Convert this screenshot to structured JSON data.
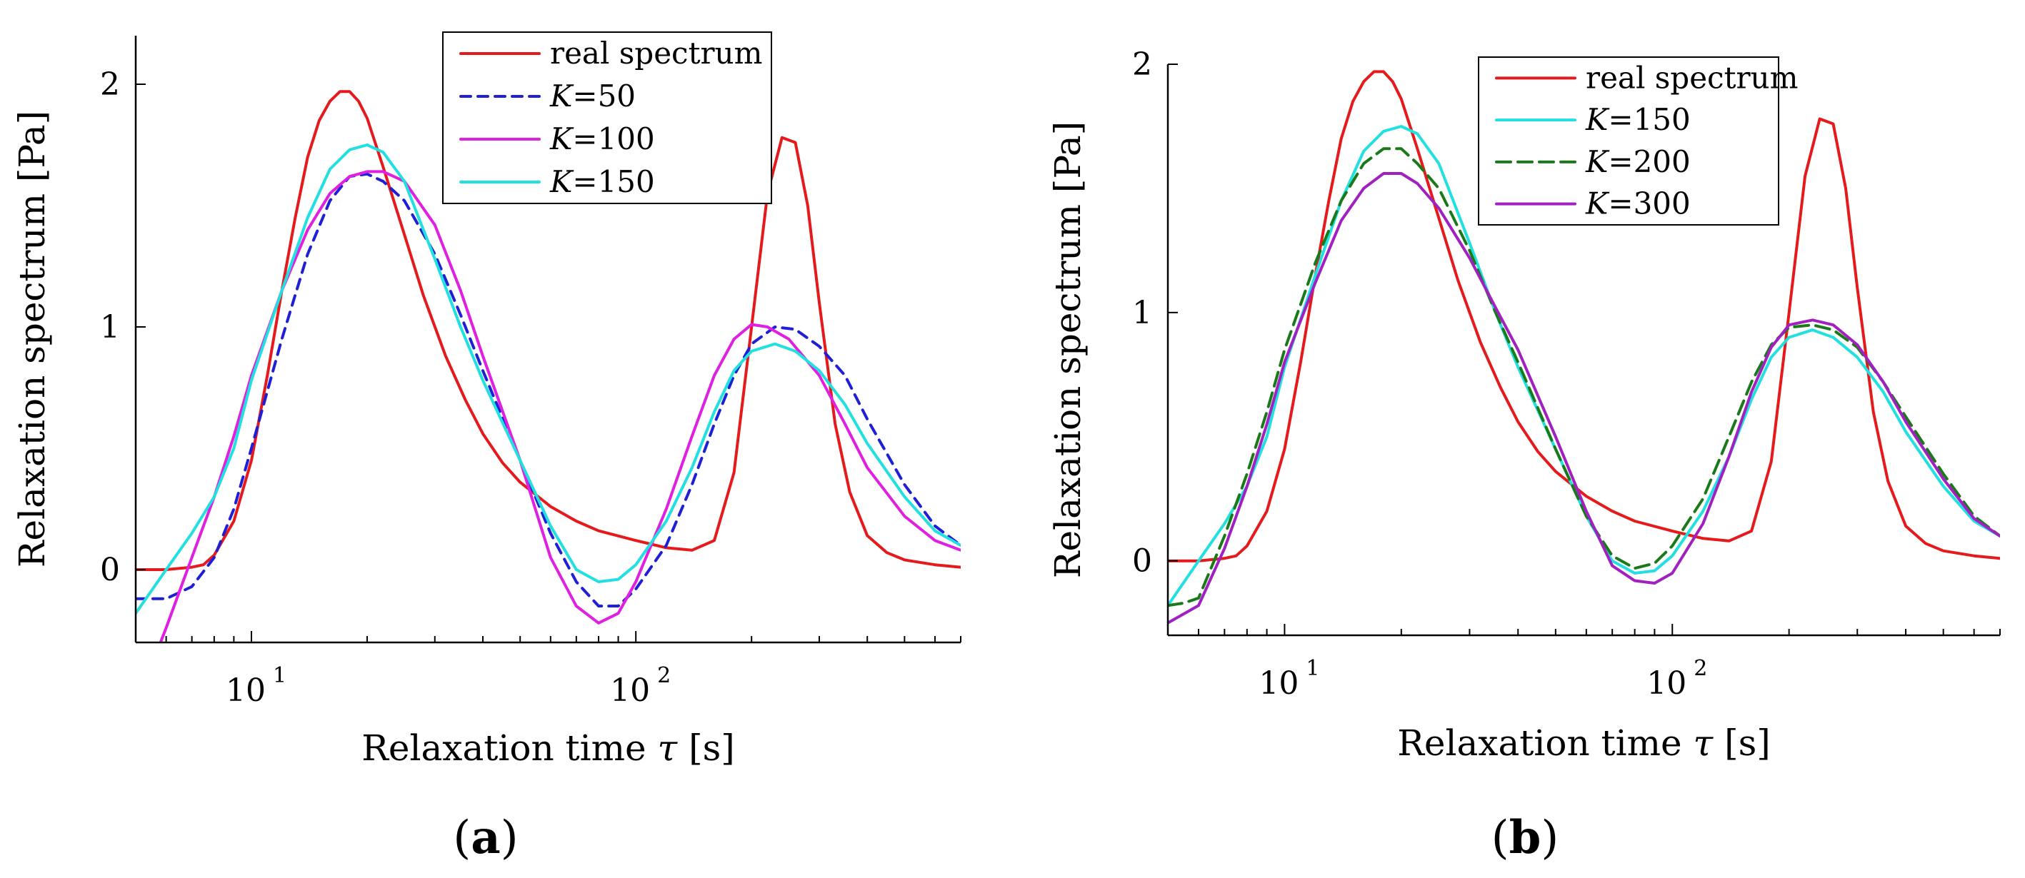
{
  "chart_data": [
    {
      "type": "line",
      "panel_label": "a",
      "xlabel": "Relaxation time",
      "xlabel_symbol": "τ",
      "xlabel_unit": "[s]",
      "ylabel": "Relaxation spectrum  [Pa]",
      "xscale": "log",
      "xlim": [
        5,
        700
      ],
      "ylim": [
        -0.3,
        2.2
      ],
      "xticks": [
        {
          "base": "10",
          "exp": "1",
          "value": 10
        },
        {
          "base": "10",
          "exp": "2",
          "value": 100
        }
      ],
      "yticks": [
        {
          "label": "0",
          "value": 0
        },
        {
          "label": "1",
          "value": 1
        },
        {
          "label": "2",
          "value": 2
        }
      ],
      "legend_position": "top-center",
      "series": [
        {
          "name": "real spectrum",
          "label_prefix": "",
          "label_value": "real spectrum",
          "color": "#e41a1c",
          "dash": "",
          "x": [
            5,
            6,
            7,
            7.5,
            8,
            9,
            10,
            11,
            12,
            13,
            14,
            15,
            16,
            17,
            18,
            19,
            20,
            22,
            25,
            28,
            32,
            36,
            40,
            45,
            50,
            60,
            70,
            80,
            100,
            120,
            140,
            160,
            180,
            200,
            220,
            240,
            260,
            280,
            300,
            330,
            360,
            400,
            450,
            500,
            600,
            700
          ],
          "y": [
            0,
            0,
            0.01,
            0.02,
            0.06,
            0.2,
            0.45,
            0.8,
            1.15,
            1.45,
            1.7,
            1.85,
            1.93,
            1.97,
            1.97,
            1.93,
            1.86,
            1.66,
            1.38,
            1.13,
            0.88,
            0.7,
            0.56,
            0.44,
            0.36,
            0.26,
            0.2,
            0.16,
            0.12,
            0.09,
            0.08,
            0.12,
            0.4,
            1.0,
            1.55,
            1.78,
            1.76,
            1.5,
            1.1,
            0.6,
            0.32,
            0.14,
            0.07,
            0.04,
            0.02,
            0.01
          ]
        },
        {
          "name": "K=50",
          "label_prefix": "K",
          "label_value": "=50",
          "color": "#1f1fd6",
          "dash": "14 10",
          "x": [
            5,
            6,
            7,
            8,
            9,
            10,
            12,
            14,
            16,
            18,
            20,
            22,
            25,
            30,
            35,
            40,
            50,
            60,
            70,
            80,
            90,
            100,
            120,
            140,
            160,
            180,
            200,
            230,
            260,
            300,
            350,
            400,
            500,
            600,
            700
          ],
          "y": [
            -0.12,
            -0.12,
            -0.07,
            0.05,
            0.25,
            0.5,
            0.95,
            1.3,
            1.52,
            1.62,
            1.63,
            1.6,
            1.52,
            1.3,
            1.05,
            0.82,
            0.45,
            0.15,
            -0.05,
            -0.15,
            -0.15,
            -0.08,
            0.1,
            0.35,
            0.6,
            0.8,
            0.93,
            1.0,
            0.99,
            0.92,
            0.8,
            0.62,
            0.35,
            0.18,
            0.1
          ]
        },
        {
          "name": "K=100",
          "label_prefix": "K",
          "label_value": "=100",
          "color": "#e020e0",
          "dash": "",
          "x": [
            5.8,
            6,
            7,
            8,
            9,
            10,
            12,
            14,
            16,
            18,
            20,
            22,
            25,
            30,
            35,
            40,
            50,
            60,
            70,
            80,
            90,
            100,
            120,
            140,
            160,
            180,
            200,
            220,
            250,
            300,
            350,
            400,
            500,
            600,
            700
          ],
          "y": [
            -0.3,
            -0.24,
            0.05,
            0.3,
            0.55,
            0.8,
            1.15,
            1.4,
            1.55,
            1.62,
            1.64,
            1.64,
            1.6,
            1.42,
            1.15,
            0.88,
            0.45,
            0.05,
            -0.15,
            -0.22,
            -0.18,
            -0.05,
            0.25,
            0.55,
            0.8,
            0.95,
            1.01,
            1.0,
            0.95,
            0.8,
            0.6,
            0.42,
            0.22,
            0.12,
            0.08
          ]
        },
        {
          "name": "K=150",
          "label_prefix": "K",
          "label_value": "=150",
          "color": "#22e0e0",
          "dash": "",
          "x": [
            5,
            6,
            7,
            8,
            9,
            10,
            12,
            14,
            16,
            18,
            20,
            22,
            25,
            30,
            35,
            40,
            50,
            60,
            70,
            80,
            90,
            100,
            120,
            140,
            160,
            180,
            200,
            230,
            260,
            300,
            350,
            400,
            500,
            600,
            700
          ],
          "y": [
            -0.18,
            0.0,
            0.15,
            0.3,
            0.5,
            0.78,
            1.15,
            1.45,
            1.65,
            1.73,
            1.75,
            1.72,
            1.6,
            1.28,
            1.0,
            0.78,
            0.45,
            0.18,
            0.0,
            -0.05,
            -0.04,
            0.02,
            0.2,
            0.42,
            0.65,
            0.82,
            0.9,
            0.93,
            0.9,
            0.82,
            0.68,
            0.52,
            0.3,
            0.16,
            0.1
          ]
        }
      ]
    },
    {
      "type": "line",
      "panel_label": "b",
      "xlabel": "Relaxation time",
      "xlabel_symbol": "τ",
      "xlabel_unit": "[s]",
      "ylabel": "Relaxation spectrum  [Pa]",
      "xscale": "log",
      "xlim": [
        5,
        700
      ],
      "ylim": [
        -0.3,
        2.0
      ],
      "xticks": [
        {
          "base": "10",
          "exp": "1",
          "value": 10
        },
        {
          "base": "10",
          "exp": "2",
          "value": 100
        }
      ],
      "yticks": [
        {
          "label": "0",
          "value": 0
        },
        {
          "label": "1",
          "value": 1
        },
        {
          "label": "2",
          "value": 2
        }
      ],
      "legend_position": "top-center",
      "series": [
        {
          "name": "real spectrum",
          "label_prefix": "",
          "label_value": "real spectrum",
          "color": "#e41a1c",
          "dash": "",
          "x": [
            5,
            6,
            7,
            7.5,
            8,
            9,
            10,
            11,
            12,
            13,
            14,
            15,
            16,
            17,
            18,
            19,
            20,
            22,
            25,
            28,
            32,
            36,
            40,
            45,
            50,
            60,
            70,
            80,
            100,
            120,
            140,
            160,
            180,
            200,
            220,
            240,
            260,
            280,
            300,
            330,
            360,
            400,
            450,
            500,
            600,
            700
          ],
          "y": [
            0,
            0,
            0.01,
            0.02,
            0.06,
            0.2,
            0.45,
            0.8,
            1.15,
            1.45,
            1.7,
            1.85,
            1.93,
            1.97,
            1.97,
            1.93,
            1.86,
            1.66,
            1.38,
            1.13,
            0.88,
            0.7,
            0.56,
            0.44,
            0.36,
            0.26,
            0.2,
            0.16,
            0.12,
            0.09,
            0.08,
            0.12,
            0.4,
            1.0,
            1.55,
            1.78,
            1.76,
            1.5,
            1.1,
            0.6,
            0.32,
            0.14,
            0.07,
            0.04,
            0.02,
            0.01
          ]
        },
        {
          "name": "K=150",
          "label_prefix": "K",
          "label_value": "=150",
          "color": "#22e0e0",
          "dash": "",
          "x": [
            5,
            6,
            7,
            8,
            9,
            10,
            12,
            14,
            16,
            18,
            20,
            22,
            25,
            30,
            35,
            40,
            50,
            60,
            70,
            80,
            90,
            100,
            120,
            140,
            160,
            180,
            200,
            230,
            260,
            300,
            350,
            400,
            500,
            600,
            700
          ],
          "y": [
            -0.18,
            0.0,
            0.15,
            0.3,
            0.5,
            0.78,
            1.15,
            1.45,
            1.65,
            1.73,
            1.75,
            1.72,
            1.6,
            1.28,
            1.0,
            0.78,
            0.45,
            0.18,
            0.0,
            -0.05,
            -0.04,
            0.02,
            0.2,
            0.42,
            0.65,
            0.82,
            0.9,
            0.93,
            0.9,
            0.82,
            0.68,
            0.52,
            0.3,
            0.16,
            0.1
          ]
        },
        {
          "name": "K=200",
          "label_prefix": "K",
          "label_value": "=200",
          "color": "#1a7a1a",
          "dash": "20 10",
          "x": [
            5,
            5.5,
            6,
            7,
            8,
            9,
            10,
            12,
            14,
            16,
            18,
            20,
            22,
            25,
            30,
            35,
            40,
            50,
            60,
            70,
            80,
            90,
            100,
            120,
            140,
            160,
            180,
            200,
            230,
            260,
            300,
            350,
            400,
            500,
            600,
            700
          ],
          "y": [
            -0.18,
            -0.17,
            -0.15,
            0.1,
            0.35,
            0.6,
            0.85,
            1.2,
            1.45,
            1.6,
            1.66,
            1.66,
            1.6,
            1.5,
            1.25,
            1.0,
            0.8,
            0.45,
            0.18,
            0.02,
            -0.03,
            -0.01,
            0.06,
            0.25,
            0.5,
            0.72,
            0.87,
            0.94,
            0.95,
            0.93,
            0.86,
            0.72,
            0.58,
            0.35,
            0.18,
            0.1
          ]
        },
        {
          "name": "K=300",
          "label_prefix": "K",
          "label_value": "=300",
          "color": "#a020c0",
          "dash": "",
          "x": [
            5,
            6,
            7,
            8,
            9,
            10,
            12,
            14,
            16,
            18,
            20,
            22,
            25,
            30,
            35,
            40,
            50,
            60,
            70,
            80,
            90,
            100,
            120,
            140,
            160,
            180,
            200,
            230,
            260,
            300,
            350,
            400,
            500,
            600,
            700
          ],
          "y": [
            -0.25,
            -0.18,
            0.05,
            0.3,
            0.55,
            0.8,
            1.12,
            1.37,
            1.5,
            1.56,
            1.56,
            1.52,
            1.42,
            1.22,
            1.02,
            0.85,
            0.5,
            0.2,
            -0.02,
            -0.08,
            -0.09,
            -0.05,
            0.15,
            0.42,
            0.68,
            0.86,
            0.95,
            0.97,
            0.95,
            0.87,
            0.72,
            0.56,
            0.33,
            0.17,
            0.1
          ]
        }
      ]
    }
  ]
}
